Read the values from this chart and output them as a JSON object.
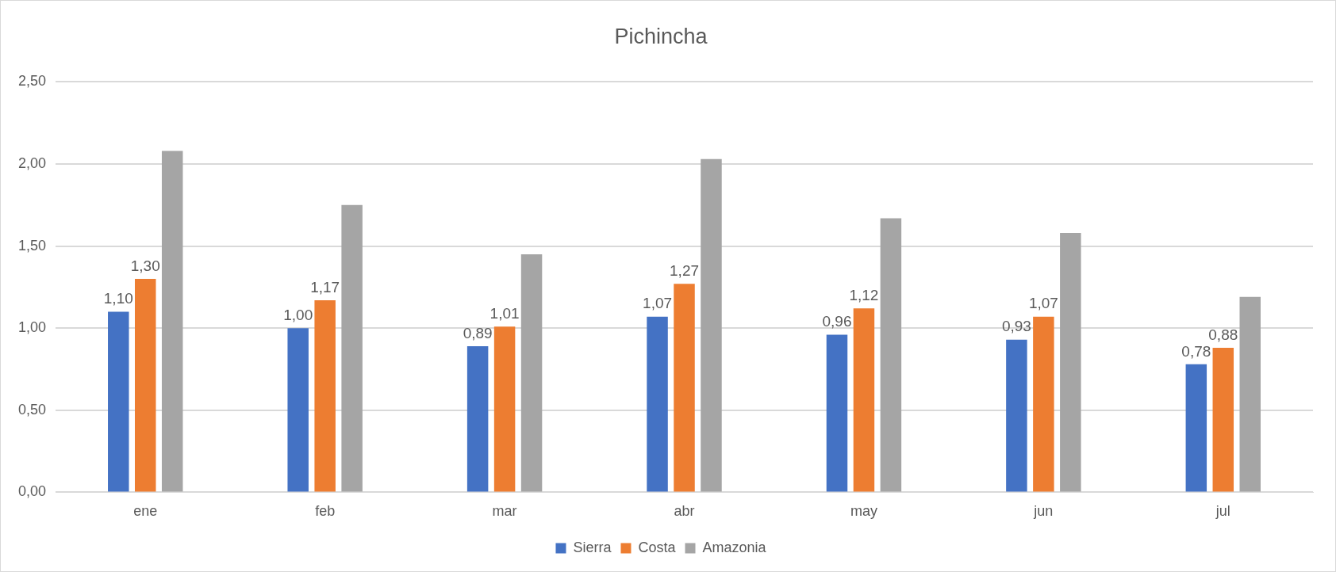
{
  "chart_data": {
    "type": "bar",
    "title": "Pichincha",
    "categories": [
      "ene",
      "feb",
      "mar",
      "abr",
      "may",
      "jun",
      "jul"
    ],
    "series": [
      {
        "name": "Sierra",
        "color": "#4472c4",
        "values": [
          1.1,
          1.0,
          0.89,
          1.07,
          0.96,
          0.93,
          0.78
        ],
        "value_labels": [
          "1,10",
          "1,00",
          "0,89",
          "1,07",
          "0,96",
          "0,93",
          "0,78"
        ]
      },
      {
        "name": "Costa",
        "color": "#ed7d31",
        "values": [
          1.3,
          1.17,
          1.01,
          1.27,
          1.12,
          1.07,
          0.88
        ],
        "value_labels": [
          "1,30",
          "1,17",
          "1,01",
          "1,27",
          "1,12",
          "1,07",
          "0,88"
        ]
      },
      {
        "name": "Amazonia",
        "color": "#a5a5a5",
        "values": [
          2.08,
          1.75,
          1.45,
          2.03,
          1.67,
          1.58,
          1.19
        ]
      }
    ],
    "ylim": [
      0,
      2.5
    ],
    "yticks": [
      {
        "value": 0,
        "label": "0,00"
      },
      {
        "value": 0.5,
        "label": "0,50"
      },
      {
        "value": 1,
        "label": "1,00"
      },
      {
        "value": 1.5,
        "label": "1,50"
      },
      {
        "value": 2,
        "label": "2,00"
      },
      {
        "value": 2.5,
        "label": "2,50"
      }
    ],
    "grid": "y",
    "legend": "bottom"
  }
}
